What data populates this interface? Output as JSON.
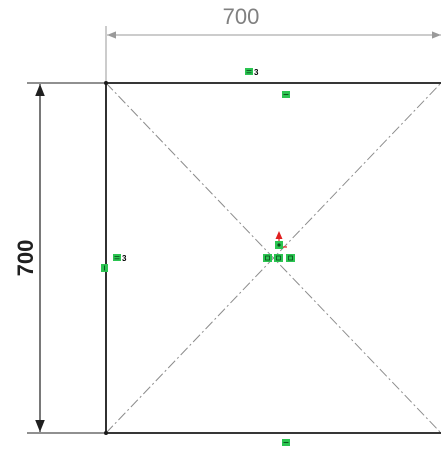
{
  "dimensions": {
    "horizontal": "700",
    "vertical": "700"
  },
  "relations": {
    "top_equal_label": "3",
    "left_equal_label": "3"
  },
  "colors": {
    "sketch_line": "#1a1a1a",
    "dimension_line": "#9a9a9a",
    "vertical_dimension_line": "#202020",
    "construction_line": "#8c8c8c",
    "relation_green": "#2bc451",
    "origin_red": "#e02020"
  },
  "icons": {
    "equal_relation": "equal-relation-icon",
    "midpoint_relation": "midpoint-relation-icon",
    "horizontal_relation": "horizontal-relation-icon",
    "vertical_relation": "vertical-relation-icon",
    "coincident_relation": "coincident-relation-icon",
    "origin": "origin-icon"
  }
}
